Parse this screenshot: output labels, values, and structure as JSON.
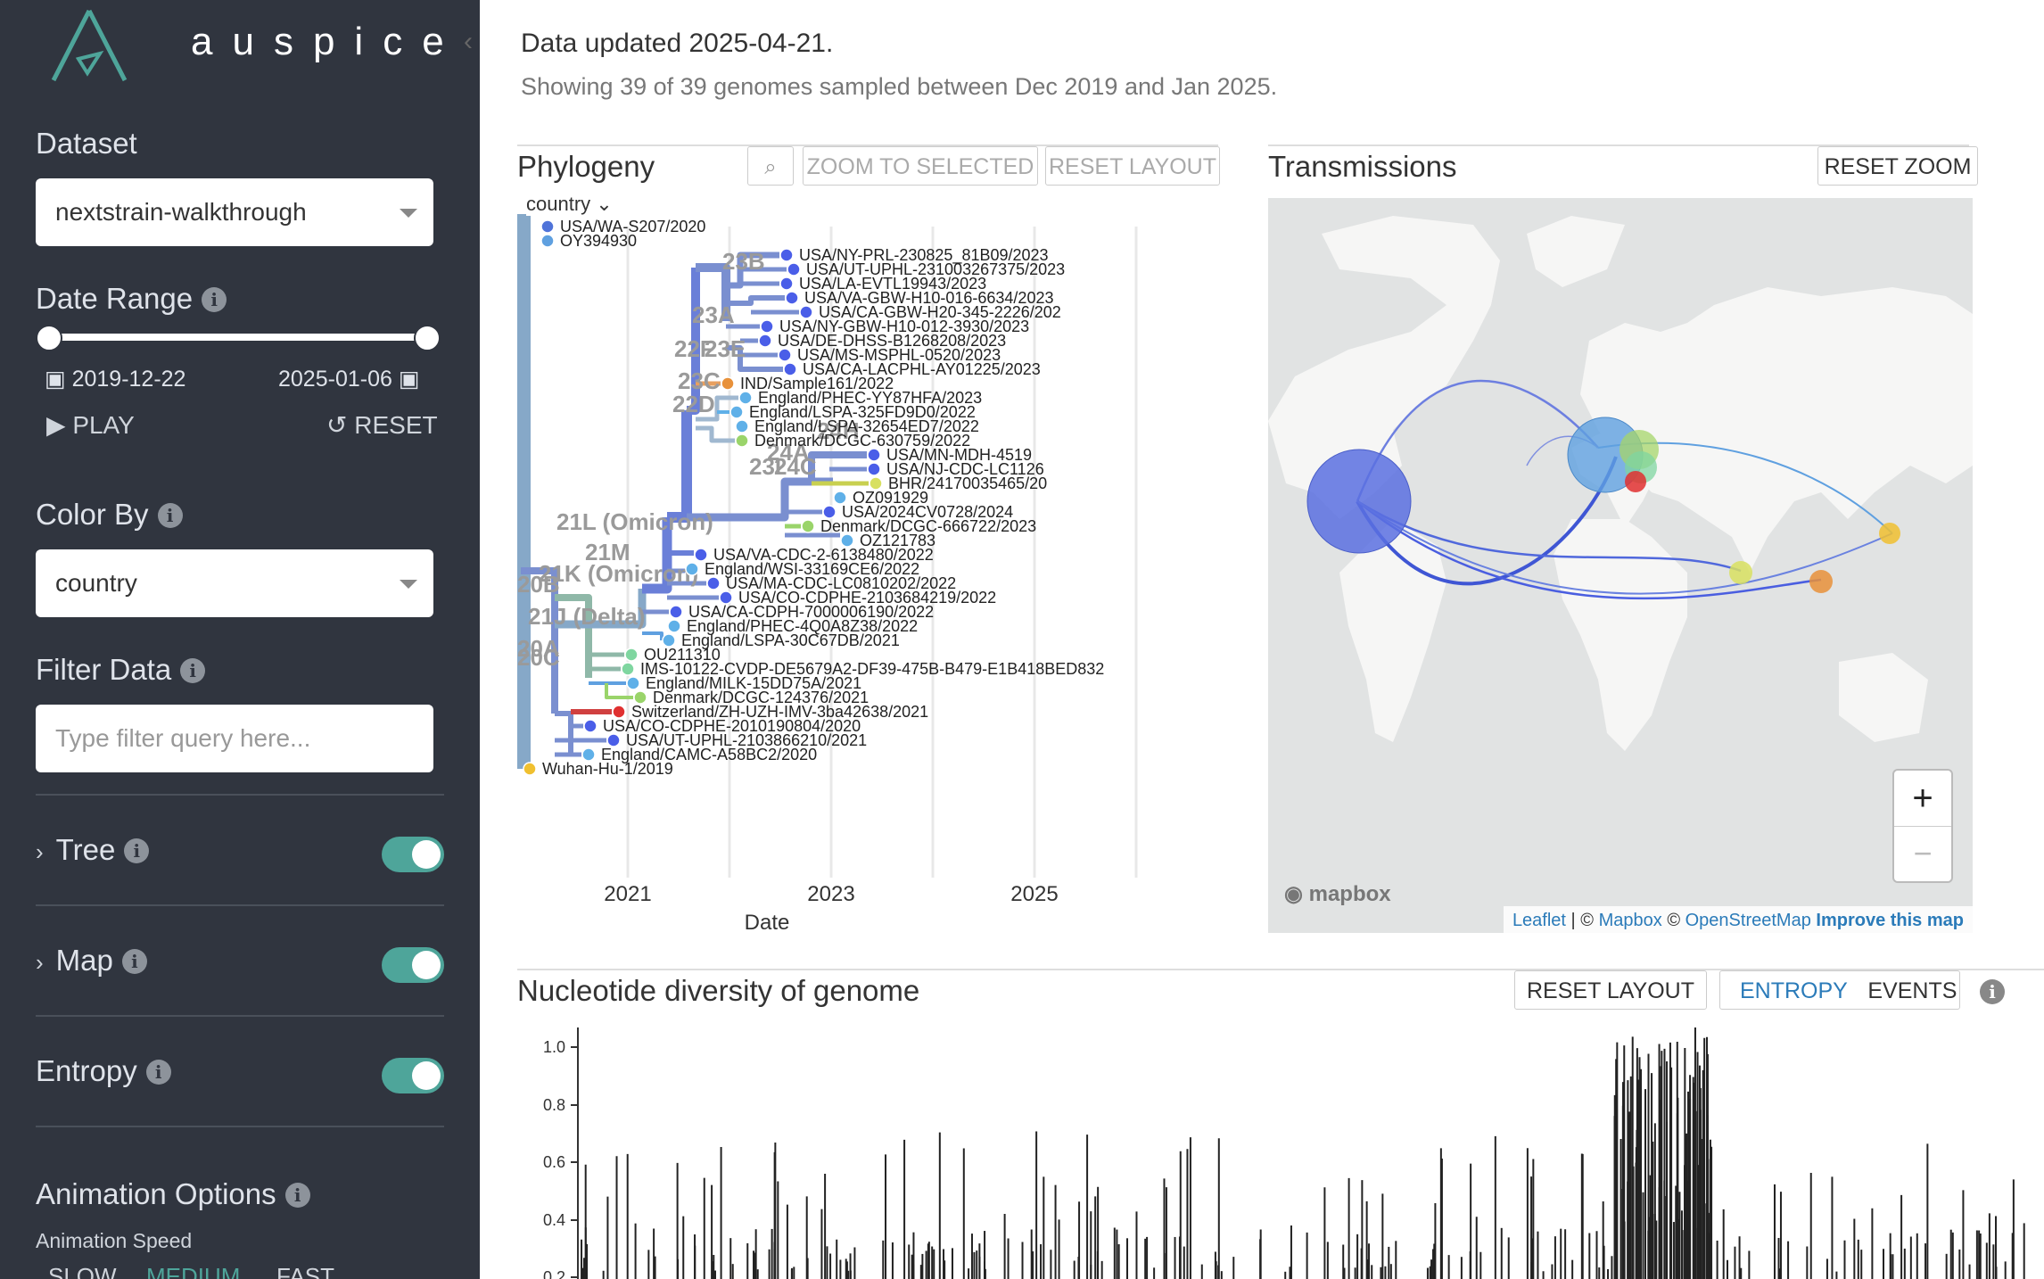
{
  "sidebar": {
    "logo_text": "auspice",
    "dataset_label": "Dataset",
    "dataset_value": "nextstrain-walkthrough",
    "date_range_label": "Date Range",
    "date_start": "2019-12-22",
    "date_end": "2025-01-06",
    "play_label": "PLAY",
    "reset_label": "RESET",
    "color_by_label": "Color By",
    "color_by_value": "country",
    "filter_label": "Filter Data",
    "filter_placeholder": "Type filter query here...",
    "tree_label": "Tree",
    "map_label": "Map",
    "entropy_label": "Entropy",
    "animation_label": "Animation Options",
    "animation_speed_label": "Animation Speed",
    "speed_slow": "SLOW",
    "speed_medium": "MEDIUM",
    "speed_fast": "FAST",
    "toggles": {
      "tree": true,
      "map": true,
      "entropy": true
    }
  },
  "header": {
    "updated": "Data updated 2025-04-21.",
    "showing": "Showing 39 of 39 genomes sampled between Dec 2019 and Jan 2025."
  },
  "phylogeny": {
    "title": "Phylogeny",
    "zoom_selected": "ZOOM TO SELECTED",
    "reset_layout": "RESET LAYOUT",
    "color_select": "country",
    "x_ticks": [
      "2021",
      "2023",
      "2025"
    ],
    "x_label": "Date",
    "clade_labels": [
      "23B",
      "23A",
      "22F",
      "23E",
      "23C",
      "22D",
      "24H",
      "24A",
      "23I",
      "24C",
      "21L (Omicron)",
      "21M",
      "21K (Omicron)",
      "20B",
      "21J (Delta)",
      "20A",
      "20C"
    ],
    "tips": [
      {
        "name": "USA/WA-S207/2020",
        "color": "#4f73d9"
      },
      {
        "name": "OY394930",
        "color": "#5fa0e0"
      },
      {
        "name": "USA/NY-PRL-230825_81B09/2023",
        "color": "#4a5ee8"
      },
      {
        "name": "USA/UT-UPHL-231003267375/2023",
        "color": "#4a5ee8"
      },
      {
        "name": "USA/LA-EVTL19943/2023",
        "color": "#4a5ee8"
      },
      {
        "name": "USA/VA-GBW-H10-016-6634/2023",
        "color": "#4a5ee8"
      },
      {
        "name": "USA/CA-GBW-H20-345-2226/202",
        "color": "#4a5ee8"
      },
      {
        "name": "USA/NY-GBW-H10-012-3930/2023",
        "color": "#4a5ee8"
      },
      {
        "name": "USA/DE-DHSS-B1268208/2023",
        "color": "#4a5ee8"
      },
      {
        "name": "USA/MS-MSPHL-0520/2023",
        "color": "#4a5ee8"
      },
      {
        "name": "USA/CA-LACPHL-AY01225/2023",
        "color": "#4a5ee8"
      },
      {
        "name": "IND/Sample161/2022",
        "color": "#e8913a"
      },
      {
        "name": "England/PHEC-YY87HFA/2023",
        "color": "#5fb0e8"
      },
      {
        "name": "England/LSPA-325FD9D0/2022",
        "color": "#5fb0e8"
      },
      {
        "name": "England/LSPA-32654ED7/2022",
        "color": "#5fb0e8"
      },
      {
        "name": "Denmark/DCGC-630759/2022",
        "color": "#9ad46a"
      },
      {
        "name": "USA/MN-MDH-4519",
        "color": "#4a5ee8"
      },
      {
        "name": "USA/NJ-CDC-LC1126",
        "color": "#4a5ee8"
      },
      {
        "name": "BHR/24170035465/20",
        "color": "#d8e060"
      },
      {
        "name": "OZ091929",
        "color": "#5fb0e8"
      },
      {
        "name": "USA/2024CV0728/2024",
        "color": "#4a5ee8"
      },
      {
        "name": "Denmark/DCGC-666722/2023",
        "color": "#9ad46a"
      },
      {
        "name": "OZ121783",
        "color": "#5fb0e8"
      },
      {
        "name": "USA/VA-CDC-2-6138480/2022",
        "color": "#4a5ee8"
      },
      {
        "name": "England/WSI-33169CE6/2022",
        "color": "#5fb0e8"
      },
      {
        "name": "USA/MA-CDC-LC0810202/2022",
        "color": "#4a5ee8"
      },
      {
        "name": "USA/CO-CDPHE-2103684219/2022",
        "color": "#4a5ee8"
      },
      {
        "name": "USA/CA-CDPH-7000006190/2022",
        "color": "#4a5ee8"
      },
      {
        "name": "England/PHEC-4Q0A8Z38/2022",
        "color": "#5fb0e8"
      },
      {
        "name": "England/LSPA-30C67DB/2021",
        "color": "#5fb0e8"
      },
      {
        "name": "OU211310",
        "color": "#7fd6a0"
      },
      {
        "name": "IMS-10122-CVDP-DE5679A2-DF39-475B-B479-E1B418BED832",
        "color": "#7fd6a0"
      },
      {
        "name": "England/MILK-15DD75A/2021",
        "color": "#5fb0e8"
      },
      {
        "name": "Denmark/DCGC-124376/2021",
        "color": "#9ad46a"
      },
      {
        "name": "Switzerland/ZH-UZH-IMV-3ba42638/2021",
        "color": "#e03030"
      },
      {
        "name": "USA/CO-CDPHE-2010190804/2020",
        "color": "#4a5ee8"
      },
      {
        "name": "USA/UT-UPHL-2103866210/2021",
        "color": "#4a5ee8"
      },
      {
        "name": "England/CAMC-A58BC2/2020",
        "color": "#5fb0e8"
      },
      {
        "name": "Wuhan-Hu-1/2019",
        "color": "#f0c030"
      }
    ]
  },
  "transmissions": {
    "title": "Transmissions",
    "reset_zoom": "RESET ZOOM",
    "zoom_in": "+",
    "zoom_out": "−",
    "mapbox_logo": "mapbox",
    "attribution_leaflet": "Leaflet",
    "attribution_sep": " | © ",
    "attribution_mapbox": "Mapbox",
    "attribution_copy": " © ",
    "attribution_osm": "OpenStreetMap",
    "attribution_improve": "Improve this map"
  },
  "entropy": {
    "title": "Nucleotide diversity of genome",
    "reset_layout": "RESET LAYOUT",
    "tab_entropy": "ENTROPY",
    "tab_events": "EVENTS",
    "y_ticks": [
      "1.0",
      "0.8",
      "0.6",
      "0.4",
      "0.2"
    ]
  },
  "colors": {
    "sidebar_bg": "#30353f",
    "accent": "#4ea59a",
    "link": "#2b7bb9"
  }
}
